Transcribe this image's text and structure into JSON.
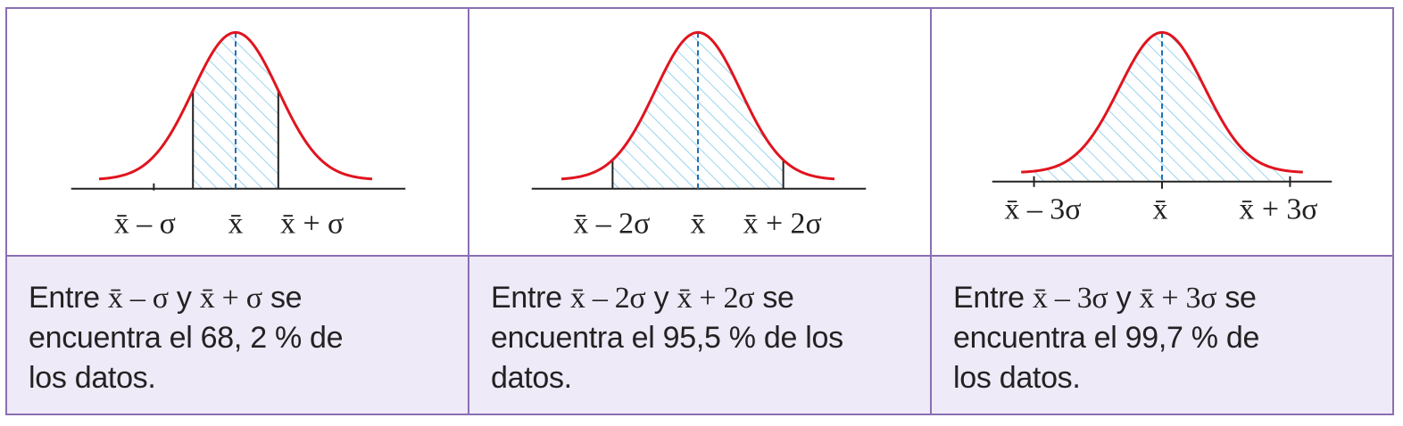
{
  "panels": [
    {
      "k": 1,
      "area_fraction": 0.682,
      "labels": {
        "left": "x̄ – σ",
        "center": "x̄",
        "right": "x̄ + σ"
      },
      "caption": {
        "entre": "Entre",
        "left": "x̄ – σ",
        "y": "y",
        "right": "x̄ + σ",
        "se": "se",
        "line2": "encuentra el 68, 2 % de",
        "line3": "los datos."
      }
    },
    {
      "k": 2,
      "area_fraction": 0.955,
      "labels": {
        "left": "x̄ – 2σ",
        "center": "x̄",
        "right": "x̄ + 2σ"
      },
      "caption": {
        "entre": "Entre",
        "left": "x̄ – 2σ",
        "y": "y",
        "right": "x̄ + 2σ",
        "se": "se",
        "line2": "encuentra el 95,5 % de los",
        "line3": "datos."
      }
    },
    {
      "k": 3,
      "area_fraction": 0.997,
      "labels": {
        "left": "x̄ – 3σ",
        "center": "x̄",
        "right": "x̄ + 3σ"
      },
      "caption": {
        "entre": "Entre",
        "left": "x̄ – 3σ",
        "y": "y",
        "right": "x̄ + 3σ",
        "se": "se",
        "line2": "encuentra el 99,7 % de",
        "line3": "los datos."
      }
    }
  ],
  "colors": {
    "curve": "#e0141e",
    "hatch": "#6ec1e8",
    "border": "#8a6fb3",
    "caption_bg": "#eeeaf7",
    "axis": "#222222"
  }
}
